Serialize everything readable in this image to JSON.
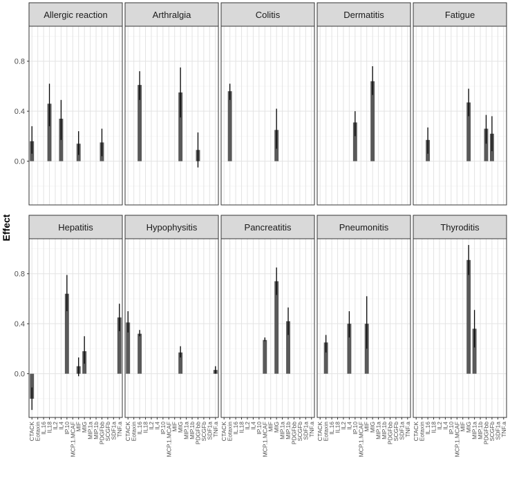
{
  "chart_data": {
    "type": "bar",
    "ylabel": "Effect",
    "xlabel": "",
    "ylim": [
      -0.35,
      1.08
    ],
    "yticks": [
      0.0,
      0.4,
      0.8
    ],
    "ytick_labels": [
      "0.0",
      "0.4",
      "0.8"
    ],
    "grid": true,
    "categories": [
      "CTACK",
      "Eotaxin",
      "IL.16",
      "IL18",
      "IL2",
      "IL4",
      "IP.10",
      "MCP.1.MCAF",
      "MIF",
      "MIG",
      "MIP.1a",
      "MIP.1b",
      "PDGFbb",
      "SCGFb",
      "SDF1a",
      "TNF.a"
    ],
    "panels": [
      {
        "name": "Allergic reaction",
        "bars": [
          {
            "category": "CTACK",
            "value": 0.16,
            "lower": 0.06,
            "upper": 0.28
          },
          {
            "category": "IL18",
            "value": 0.46,
            "lower": 0.28,
            "upper": 0.62
          },
          {
            "category": "IL4",
            "value": 0.34,
            "lower": 0.17,
            "upper": 0.49
          },
          {
            "category": "MIF",
            "value": 0.14,
            "lower": 0.05,
            "upper": 0.24
          },
          {
            "category": "PDGFbb",
            "value": 0.15,
            "lower": 0.04,
            "upper": 0.26
          }
        ]
      },
      {
        "name": "Arthralgia",
        "bars": [
          {
            "category": "IL.16",
            "value": 0.61,
            "lower": 0.49,
            "upper": 0.72
          },
          {
            "category": "MIG",
            "value": 0.55,
            "lower": 0.35,
            "upper": 0.75
          },
          {
            "category": "PDGFbb",
            "value": 0.09,
            "lower": -0.05,
            "upper": 0.23
          }
        ]
      },
      {
        "name": "Colitis",
        "bars": [
          {
            "category": "Eotaxin",
            "value": 0.56,
            "lower": 0.49,
            "upper": 0.62
          },
          {
            "category": "MIG",
            "value": 0.25,
            "lower": 0.1,
            "upper": 0.42
          }
        ]
      },
      {
        "name": "Dermatitis",
        "bars": [
          {
            "category": "IP.10",
            "value": 0.31,
            "lower": 0.2,
            "upper": 0.4
          },
          {
            "category": "MIG",
            "value": 0.64,
            "lower": 0.53,
            "upper": 0.76
          }
        ]
      },
      {
        "name": "Fatigue",
        "bars": [
          {
            "category": "IL.16",
            "value": 0.17,
            "lower": 0.06,
            "upper": 0.27
          },
          {
            "category": "MIG",
            "value": 0.47,
            "lower": 0.36,
            "upper": 0.58
          },
          {
            "category": "PDGFbb",
            "value": 0.26,
            "lower": 0.14,
            "upper": 0.37
          },
          {
            "category": "SCGFb",
            "value": 0.22,
            "lower": 0.08,
            "upper": 0.36
          }
        ]
      },
      {
        "name": "Hepatitis",
        "bars": [
          {
            "category": "CTACK",
            "value": -0.2,
            "lower": -0.29,
            "upper": -0.11
          },
          {
            "category": "IP.10",
            "value": 0.64,
            "lower": 0.5,
            "upper": 0.79
          },
          {
            "category": "MIF",
            "value": 0.06,
            "lower": -0.02,
            "upper": 0.13
          },
          {
            "category": "MIG",
            "value": 0.18,
            "lower": 0.08,
            "upper": 0.3
          },
          {
            "category": "TNF.a",
            "value": 0.45,
            "lower": 0.34,
            "upper": 0.56
          }
        ]
      },
      {
        "name": "Hypophysitis",
        "bars": [
          {
            "category": "CTACK",
            "value": 0.41,
            "lower": 0.33,
            "upper": 0.5
          },
          {
            "category": "IL.16",
            "value": 0.32,
            "lower": 0.3,
            "upper": 0.35
          },
          {
            "category": "MIG",
            "value": 0.17,
            "lower": 0.13,
            "upper": 0.22
          },
          {
            "category": "TNF.a",
            "value": 0.03,
            "lower": 0.0,
            "upper": 0.06
          }
        ]
      },
      {
        "name": "Pancreatitis",
        "bars": [
          {
            "category": "MCP.1.MCAF",
            "value": 0.27,
            "lower": 0.26,
            "upper": 0.29
          },
          {
            "category": "MIG",
            "value": 0.74,
            "lower": 0.63,
            "upper": 0.85
          },
          {
            "category": "MIP.1b",
            "value": 0.42,
            "lower": 0.31,
            "upper": 0.53
          }
        ]
      },
      {
        "name": "Pneumonitis",
        "bars": [
          {
            "category": "Eotaxin",
            "value": 0.25,
            "lower": 0.17,
            "upper": 0.31
          },
          {
            "category": "IL4",
            "value": 0.4,
            "lower": 0.29,
            "upper": 0.5
          },
          {
            "category": "MIF",
            "value": 0.4,
            "lower": 0.2,
            "upper": 0.62
          }
        ]
      },
      {
        "name": "Thyroditis",
        "bars": [
          {
            "category": "MIG",
            "value": 0.91,
            "lower": 0.79,
            "upper": 1.03
          },
          {
            "category": "MIP.1a",
            "value": 0.36,
            "lower": 0.21,
            "upper": 0.51
          }
        ]
      }
    ]
  }
}
